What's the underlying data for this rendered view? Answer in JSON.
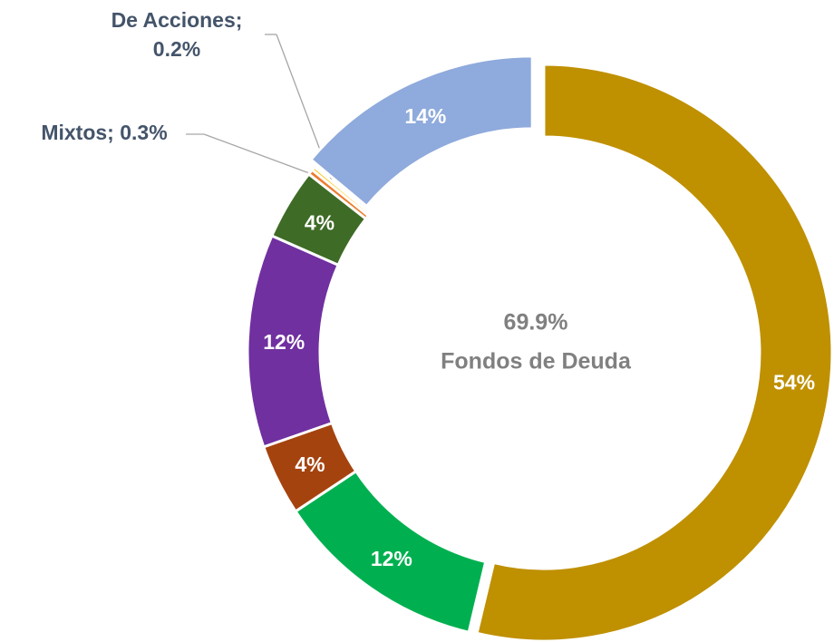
{
  "chart_data": {
    "type": "donut",
    "categories": [
      null,
      null,
      null,
      null,
      null,
      null,
      null,
      null
    ],
    "values": [
      54,
      12,
      4,
      12,
      4,
      0.3,
      0.2,
      14
    ],
    "value_labels": [
      "54%",
      "12%",
      "4%",
      "12%",
      "4%",
      "Mixtos; 0.3%",
      "De Acciones; 0.2%",
      "14%"
    ],
    "colors": [
      "#BF9000",
      "#00B050",
      "#A5430F",
      "#7030A0",
      "#3E6B26",
      "#ED7D31",
      "#FFC000",
      "#8FAADC"
    ],
    "center_value_label": "69.9%",
    "center_label": "Fondos de Deuda"
  }
}
